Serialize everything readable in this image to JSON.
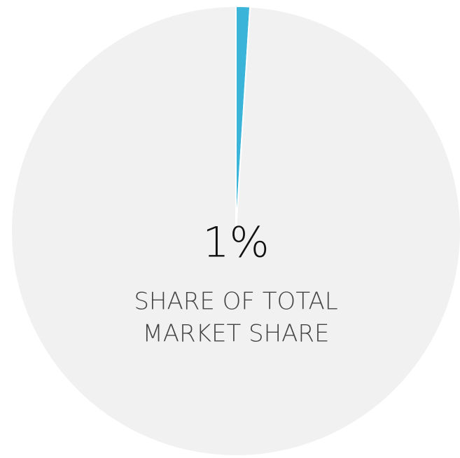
{
  "chart_data": {
    "type": "pie",
    "values": [
      1,
      99
    ],
    "colors": [
      "#3ab4d8",
      "#f1f1f1"
    ],
    "value_labels": [
      "1%",
      null
    ],
    "annotation": [
      "SHARE OF TOTAL",
      "MARKET SHARE"
    ]
  }
}
